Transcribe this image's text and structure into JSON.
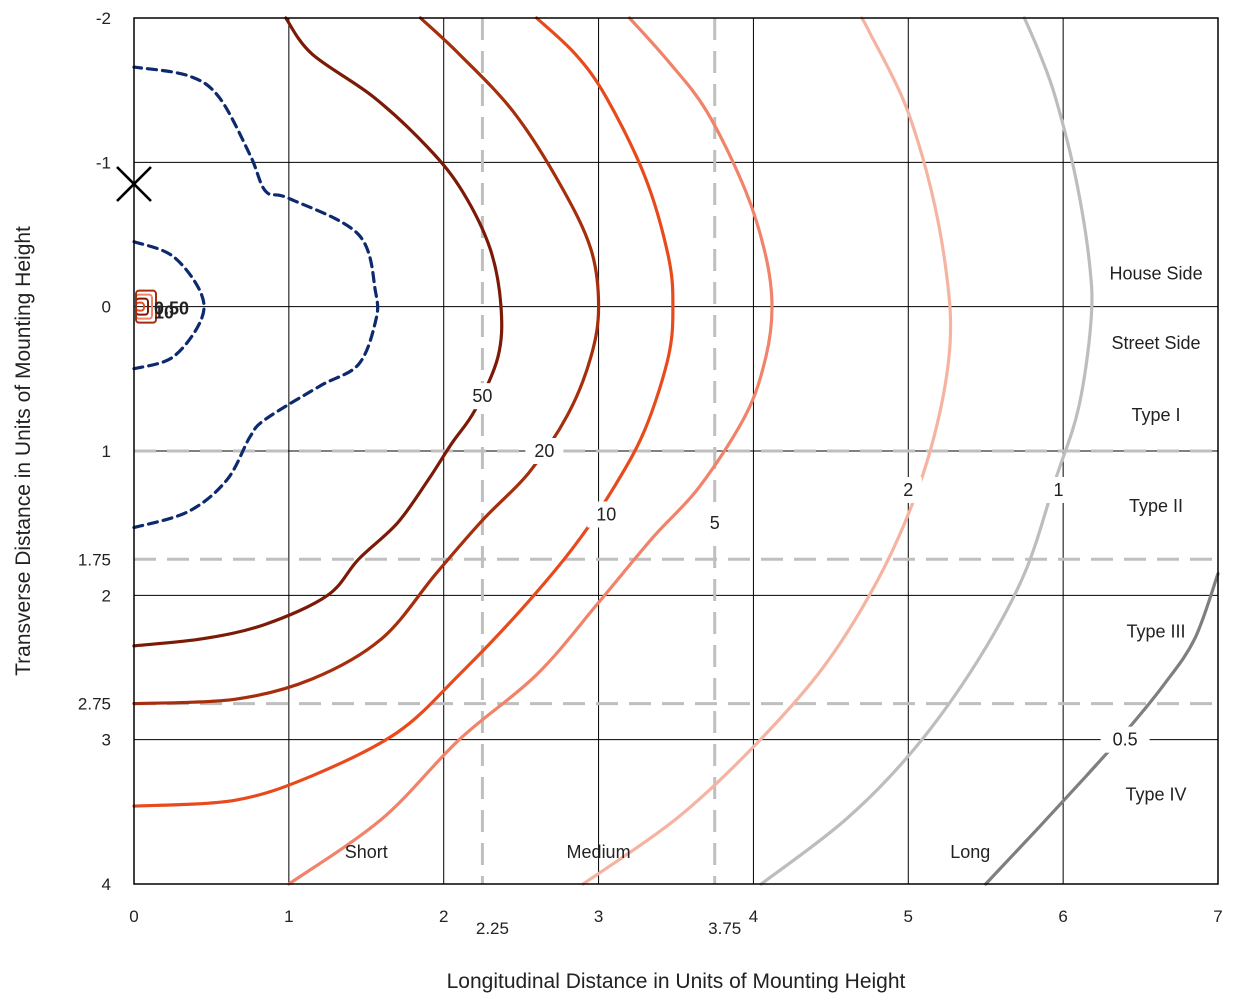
{
  "chart_data": {
    "type": "contour",
    "title": "",
    "xlabel": "Longitudinal Distance in Units of Mounting Height",
    "ylabel": "Transverse Distance in Units of Mounting Height",
    "xlim": [
      0,
      7
    ],
    "ylim": [
      -2,
      4
    ],
    "x_ticks": [
      0,
      1,
      2,
      3,
      4,
      5,
      6,
      7
    ],
    "y_ticks": [
      -2,
      -1,
      0,
      1,
      2,
      3,
      4
    ],
    "x_extra_ticks": [
      2.25,
      3.75
    ],
    "y_extra_ticks": [
      1.75,
      2.75
    ],
    "grid": true,
    "reference_lines": {
      "vertical": [
        2.25,
        3.75
      ],
      "horizontal": [
        1,
        1.75,
        2.75
      ],
      "style": "dashed"
    },
    "luminaire_marker": {
      "symbol": "×",
      "x": 0,
      "y": -0.85
    },
    "distance_labels": [
      {
        "text": "Short",
        "x": 1.5,
        "y": 3.78
      },
      {
        "text": "Medium",
        "x": 3.0,
        "y": 3.78
      },
      {
        "text": "Long",
        "x": 5.4,
        "y": 3.78
      }
    ],
    "type_labels": [
      {
        "text": "House Side",
        "x": 6.6,
        "y": -0.23
      },
      {
        "text": "Street Side",
        "x": 6.6,
        "y": 0.25
      },
      {
        "text": "Type I",
        "x": 6.6,
        "y": 0.75
      },
      {
        "text": "Type II",
        "x": 6.6,
        "y": 1.38
      },
      {
        "text": "Type III",
        "x": 6.6,
        "y": 2.25
      },
      {
        "text": "Type IV",
        "x": 6.6,
        "y": 3.38
      }
    ],
    "contours": [
      {
        "level": "max",
        "color": "#0d2a6e",
        "dashed": true,
        "label": "",
        "points": [
          [
            0,
            1.53
          ],
          [
            0.35,
            1.42
          ],
          [
            0.6,
            1.2
          ],
          [
            0.75,
            0.9
          ],
          [
            0.85,
            0.78
          ],
          [
            1.2,
            0.55
          ],
          [
            1.45,
            0.4
          ],
          [
            1.56,
            0.1
          ],
          [
            1.56,
            -0.1
          ],
          [
            1.45,
            -0.5
          ],
          [
            1.0,
            -0.75
          ],
          [
            0.85,
            -0.8
          ],
          [
            0.75,
            -1.05
          ],
          [
            0.55,
            -1.45
          ],
          [
            0.35,
            -1.6
          ],
          [
            0,
            -1.66
          ]
        ]
      },
      {
        "level": "max",
        "color": "#0d2a6e",
        "dashed": true,
        "label": "",
        "points": [
          [
            0,
            0.43
          ],
          [
            0.25,
            0.35
          ],
          [
            0.43,
            0.1
          ],
          [
            0.43,
            -0.1
          ],
          [
            0.25,
            -0.35
          ],
          [
            0,
            -0.45
          ]
        ]
      },
      {
        "level": "50",
        "color": "#7b1a06",
        "dashed": false,
        "label": "50",
        "label_x": 2.25,
        "label_y": 0.62,
        "points": [
          [
            0,
            2.35
          ],
          [
            0.45,
            2.3
          ],
          [
            0.85,
            2.2
          ],
          [
            1.25,
            2.0
          ],
          [
            1.45,
            1.75
          ],
          [
            1.7,
            1.5
          ],
          [
            1.9,
            1.2
          ],
          [
            2.05,
            0.95
          ],
          [
            2.2,
            0.72
          ],
          [
            2.35,
            0.35
          ],
          [
            2.37,
            0
          ],
          [
            2.3,
            -0.4
          ],
          [
            2.12,
            -0.8
          ],
          [
            1.9,
            -1.1
          ],
          [
            1.55,
            -1.45
          ],
          [
            1.15,
            -1.75
          ],
          [
            0.98,
            -2.0
          ]
        ]
      },
      {
        "level": "20",
        "color": "#a72e0c",
        "dashed": false,
        "label": "20",
        "label_x": 2.65,
        "label_y": 1.0,
        "points": [
          [
            0,
            2.75
          ],
          [
            0.65,
            2.72
          ],
          [
            1.15,
            2.58
          ],
          [
            1.6,
            2.3
          ],
          [
            1.95,
            1.85
          ],
          [
            2.25,
            1.48
          ],
          [
            2.55,
            1.15
          ],
          [
            2.8,
            0.75
          ],
          [
            2.95,
            0.35
          ],
          [
            3.0,
            0
          ],
          [
            2.95,
            -0.4
          ],
          [
            2.75,
            -0.85
          ],
          [
            2.45,
            -1.35
          ],
          [
            2.1,
            -1.75
          ],
          [
            1.85,
            -2.0
          ]
        ]
      },
      {
        "level": "10",
        "color": "#e94a1c",
        "dashed": false,
        "label": "10",
        "label_x": 3.05,
        "label_y": 1.44,
        "points": [
          [
            0,
            3.46
          ],
          [
            0.65,
            3.42
          ],
          [
            1.15,
            3.25
          ],
          [
            1.7,
            2.95
          ],
          [
            2.1,
            2.55
          ],
          [
            2.5,
            2.1
          ],
          [
            2.85,
            1.65
          ],
          [
            3.1,
            1.25
          ],
          [
            3.3,
            0.85
          ],
          [
            3.45,
            0.35
          ],
          [
            3.48,
            0
          ],
          [
            3.45,
            -0.35
          ],
          [
            3.3,
            -0.9
          ],
          [
            3.05,
            -1.45
          ],
          [
            2.85,
            -1.75
          ],
          [
            2.6,
            -2.0
          ]
        ]
      },
      {
        "level": "5",
        "color": "#f0836a",
        "dashed": false,
        "label": "5",
        "label_x": 3.75,
        "label_y": 1.5,
        "points": [
          [
            1.0,
            4.0
          ],
          [
            1.6,
            3.55
          ],
          [
            2.1,
            3.0
          ],
          [
            2.6,
            2.55
          ],
          [
            3.0,
            2.05
          ],
          [
            3.35,
            1.6
          ],
          [
            3.65,
            1.25
          ],
          [
            3.95,
            0.75
          ],
          [
            4.08,
            0.35
          ],
          [
            4.12,
            0
          ],
          [
            4.08,
            -0.35
          ],
          [
            3.95,
            -0.8
          ],
          [
            3.7,
            -1.35
          ],
          [
            3.45,
            -1.7
          ],
          [
            3.2,
            -2.0
          ]
        ]
      },
      {
        "level": "2",
        "color": "#f5b4a2",
        "dashed": false,
        "label": "2",
        "label_x": 5.0,
        "label_y": 1.27,
        "points": [
          [
            2.9,
            4.0
          ],
          [
            3.5,
            3.55
          ],
          [
            4.0,
            3.05
          ],
          [
            4.45,
            2.5
          ],
          [
            4.8,
            1.9
          ],
          [
            5.05,
            1.3
          ],
          [
            5.2,
            0.75
          ],
          [
            5.27,
            0.25
          ],
          [
            5.25,
            -0.2
          ],
          [
            5.15,
            -0.8
          ],
          [
            4.98,
            -1.4
          ],
          [
            4.75,
            -1.9
          ],
          [
            4.7,
            -2.0
          ]
        ]
      },
      {
        "level": "1",
        "color": "#bdbdbd",
        "dashed": false,
        "label": "1",
        "label_x": 5.97,
        "label_y": 1.27,
        "points": [
          [
            4.05,
            4.0
          ],
          [
            4.6,
            3.55
          ],
          [
            5.05,
            3.05
          ],
          [
            5.45,
            2.45
          ],
          [
            5.75,
            1.85
          ],
          [
            5.95,
            1.2
          ],
          [
            6.1,
            0.7
          ],
          [
            6.18,
            0.1
          ],
          [
            6.17,
            -0.3
          ],
          [
            6.08,
            -0.9
          ],
          [
            5.95,
            -1.45
          ],
          [
            5.85,
            -1.75
          ],
          [
            5.75,
            -2.0
          ]
        ]
      },
      {
        "level": "0.5",
        "color": "#7f7f7f",
        "dashed": false,
        "label": "0.5",
        "label_x": 6.4,
        "label_y": 3.0,
        "points": [
          [
            5.5,
            4.0
          ],
          [
            5.85,
            3.6
          ],
          [
            6.15,
            3.25
          ],
          [
            6.4,
            2.95
          ],
          [
            6.65,
            2.62
          ],
          [
            6.85,
            2.3
          ],
          [
            7.0,
            1.85
          ]
        ]
      }
    ],
    "origin_labels": [
      "0.50",
      "10"
    ]
  }
}
